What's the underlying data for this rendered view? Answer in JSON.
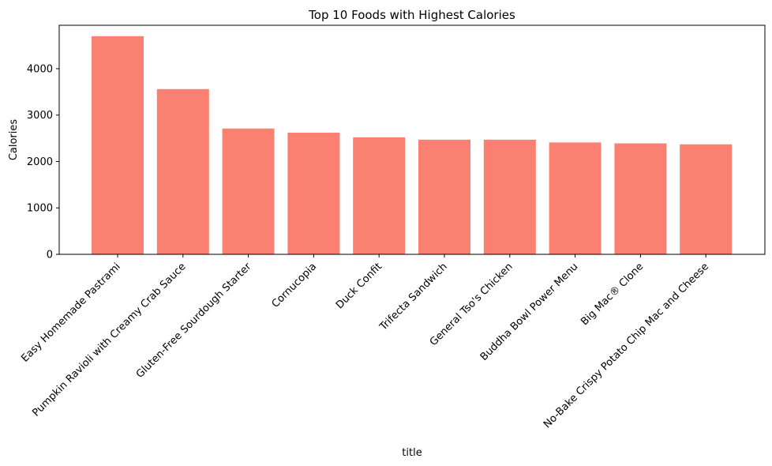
{
  "chart_data": {
    "type": "bar",
    "title": "Top 10 Foods with Highest Calories",
    "xlabel": "title",
    "ylabel": "Calories",
    "categories": [
      "Easy Homemade Pastrami",
      "Pumpkin Ravioli with Creamy Crab Sauce",
      "Gluten-Free Sourdough Starter",
      "Cornucopia",
      "Duck Confit",
      "Trifecta Sandwich",
      "General Tso's Chicken",
      "Buddha Bowl Power Menu",
      "Big Mac® Clone",
      "No-Bake Crispy Potato Chip Mac and Cheese"
    ],
    "values": [
      4700,
      3560,
      2710,
      2620,
      2520,
      2470,
      2470,
      2410,
      2390,
      2370
    ],
    "ylim": [
      0,
      4935
    ],
    "yticks": [
      0,
      1000,
      2000,
      3000,
      4000
    ],
    "grid": false,
    "legend": "none",
    "bar_color": "#fa8072"
  }
}
